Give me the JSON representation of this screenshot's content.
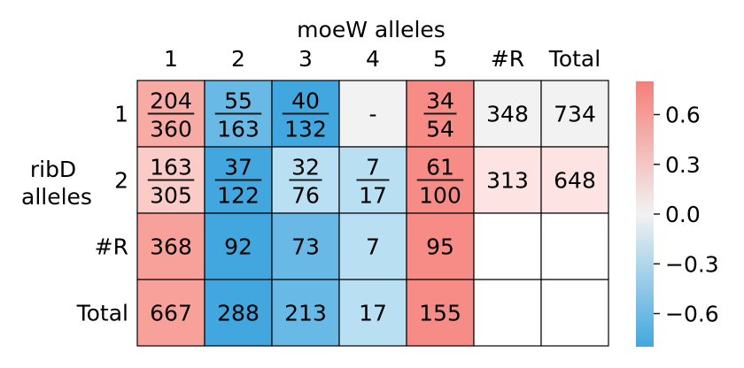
{
  "chart_data": {
    "type": "heatmap",
    "col_axis_label": "moeW alleles",
    "row_axis_label": [
      "ribD",
      "alleles"
    ],
    "col_labels": [
      "1",
      "2",
      "3",
      "4",
      "5",
      "#R",
      "Total"
    ],
    "row_labels": [
      "1",
      "2",
      "#R",
      "Total"
    ],
    "cells": [
      [
        {
          "num": "204",
          "den": "360",
          "color": "#f8aaa4"
        },
        {
          "num": "55",
          "den": "163",
          "color": "#68b9e6"
        },
        {
          "num": "40",
          "den": "132",
          "color": "#42a7df"
        },
        {
          "text": "-",
          "color": "#f2f2f2"
        },
        {
          "num": "34",
          "den": "54",
          "color": "#f78c86"
        },
        {
          "text": "348",
          "color": "#f2f2f2"
        },
        {
          "text": "734",
          "color": "#f2f2f2"
        }
      ],
      [
        {
          "num": "163",
          "den": "305",
          "color": "#fbcbc8"
        },
        {
          "num": "37",
          "den": "122",
          "color": "#42a7df"
        },
        {
          "num": "32",
          "den": "76",
          "color": "#b9dff3"
        },
        {
          "num": "7",
          "den": "17",
          "color": "#b9dff3"
        },
        {
          "num": "61",
          "den": "100",
          "color": "#f78c86"
        },
        {
          "text": "313",
          "color": "#fde3e2"
        },
        {
          "text": "648",
          "color": "#fde3e2"
        }
      ],
      [
        {
          "text": "368",
          "color": "#f8a09a"
        },
        {
          "text": "92",
          "color": "#42a7df"
        },
        {
          "text": "73",
          "color": "#68b9e6"
        },
        {
          "text": "7",
          "color": "#b9dff3"
        },
        {
          "text": "95",
          "color": "#f78c86"
        },
        {
          "text": "",
          "color": "#ffffff"
        },
        {
          "text": "",
          "color": "#ffffff"
        }
      ],
      [
        {
          "text": "667",
          "color": "#f8a09a"
        },
        {
          "text": "288",
          "color": "#42a7df"
        },
        {
          "text": "213",
          "color": "#68b9e6"
        },
        {
          "text": "17",
          "color": "#b9dff3"
        },
        {
          "text": "155",
          "color": "#f78c86"
        },
        {
          "text": "",
          "color": "#ffffff"
        },
        {
          "text": "",
          "color": "#ffffff"
        }
      ]
    ],
    "colorbar": {
      "range": [
        -0.8,
        0.8
      ],
      "ticks": [
        0.6,
        0.3,
        0.0,
        -0.3,
        -0.6
      ],
      "tick_labels": [
        "0.6",
        "0.3",
        "0.0",
        "−0.3",
        "−0.6"
      ],
      "low_color": "#42a7df",
      "mid_color": "#f2f2f2",
      "high_color": "#f47f79"
    }
  }
}
